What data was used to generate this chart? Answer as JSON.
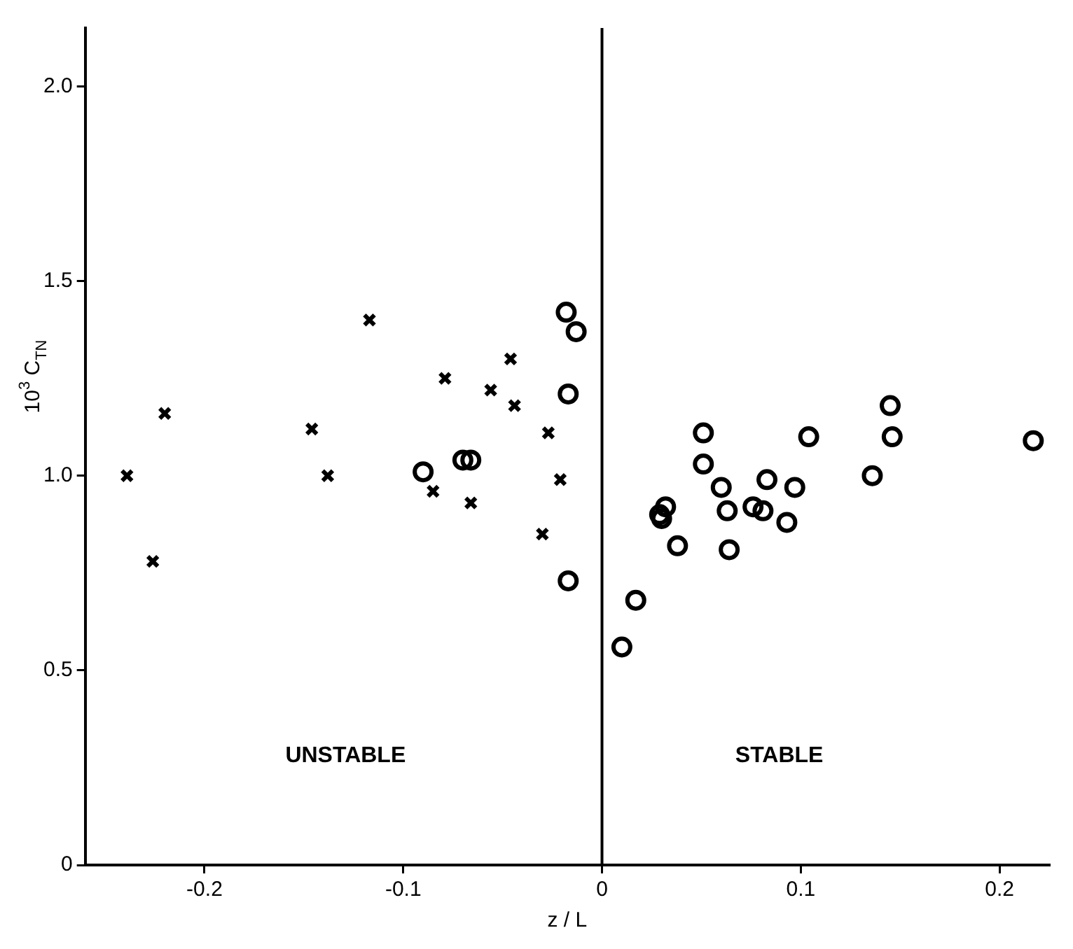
{
  "chart_data": {
    "type": "scatter",
    "xlabel": "z / L",
    "ylabel": "10$^{3}$ C$_{TN}$",
    "xlim": [
      -0.26,
      0.225
    ],
    "xticks": [
      -0.2,
      -0.1,
      0,
      0.1,
      0.2
    ],
    "ylim": [
      0,
      2.15
    ],
    "yticks": [
      0,
      0.5,
      {
        "value": 1,
        "label": "1.0"
      },
      1.5,
      {
        "value": 2,
        "label": "2.0"
      }
    ],
    "grid": false,
    "legend": false,
    "ref_lines": [
      {
        "axis": "x",
        "value": 0,
        "color": "#000000"
      }
    ],
    "annotations": [
      "UNSTABLE",
      "STABLE"
    ],
    "series": [
      {
        "color": "#000000",
        "marker": "cross",
        "x": [
          -0.239,
          -0.22,
          -0.226,
          -0.146,
          -0.138,
          -0.117,
          -0.079,
          -0.085,
          -0.066,
          -0.046,
          -0.056,
          -0.044,
          -0.027,
          -0.021,
          -0.03
        ],
        "values": [
          1.0,
          1.16,
          0.78,
          1.12,
          1.0,
          1.4,
          1.25,
          0.96,
          0.93,
          1.3,
          1.22,
          1.18,
          1.11,
          0.99,
          0.85
        ]
      },
      {
        "color": "#000000",
        "marker": "circle",
        "x": [
          -0.09,
          -0.07,
          -0.066,
          -0.018,
          -0.013,
          -0.017,
          -0.017,
          0.051,
          0.104,
          0.145,
          0.146,
          0.217,
          0.051,
          0.06,
          0.083,
          0.097,
          0.136,
          0.032,
          0.029,
          0.03,
          0.063,
          0.076,
          0.081,
          0.093,
          0.038,
          0.064,
          0.017,
          0.01
        ],
        "values": [
          1.01,
          1.04,
          1.04,
          1.42,
          1.37,
          1.21,
          0.73,
          1.11,
          1.1,
          1.18,
          1.1,
          1.09,
          1.03,
          0.97,
          0.99,
          0.97,
          1.0,
          0.92,
          0.9,
          0.89,
          0.91,
          0.92,
          0.91,
          0.88,
          0.82,
          0.81,
          0.68,
          0.56
        ]
      }
    ]
  }
}
